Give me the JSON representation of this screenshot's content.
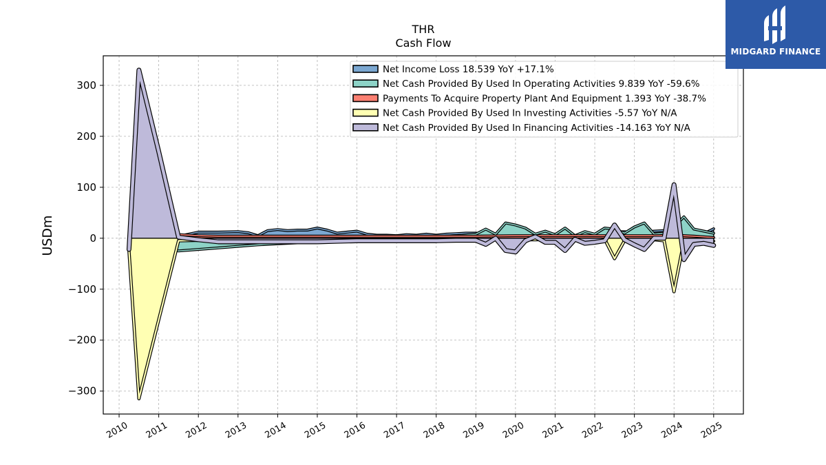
{
  "brand": {
    "name": "MIDGARD FINANCE",
    "color": "#2d5aa8"
  },
  "chart_data": {
    "type": "area",
    "title": "THR",
    "subtitle": "Cash Flow",
    "xlabel": "",
    "ylabel": "USDm",
    "xlim": [
      2009.6,
      2025.75
    ],
    "ylim": [
      -345,
      358
    ],
    "yticks": [
      -300,
      -200,
      -100,
      0,
      100,
      200,
      300
    ],
    "ytick_labels": [
      "−300",
      "−200",
      "−100",
      "0",
      "100",
      "200",
      "300"
    ],
    "xticks": [
      2010,
      2011,
      2012,
      2013,
      2014,
      2015,
      2016,
      2017,
      2018,
      2019,
      2020,
      2021,
      2022,
      2023,
      2024,
      2025
    ],
    "xtick_labels": [
      "2010",
      "2011",
      "2012",
      "2013",
      "2014",
      "2015",
      "2016",
      "2017",
      "2018",
      "2019",
      "2020",
      "2021",
      "2022",
      "2023",
      "2024",
      "2025"
    ],
    "grid": true,
    "legend_position": "top-right",
    "series": [
      {
        "name": "Net Income Loss",
        "legend_label": "Net Income Loss  18.539 YoY +17.1%",
        "color": "#7ba7d1",
        "line_width": 1.6,
        "x": [
          2010.25,
          2010.5,
          2011.0,
          2011.5,
          2011.75,
          2012.0,
          2012.5,
          2013.0,
          2013.25,
          2013.5,
          2013.75,
          2014.0,
          2014.25,
          2014.5,
          2014.75,
          2015.0,
          2015.25,
          2015.5,
          2015.75,
          2016.0,
          2016.25,
          2016.5,
          2016.75,
          2017.0,
          2017.25,
          2017.5,
          2017.75,
          2018.0,
          2018.25,
          2018.5,
          2018.75,
          2019.0,
          2019.25,
          2019.5,
          2019.75,
          2020.0,
          2020.25,
          2020.5,
          2020.75,
          2021.0,
          2021.25,
          2021.5,
          2021.75,
          2022.0,
          2022.25,
          2022.5,
          2022.75,
          2023.0,
          2023.25,
          2023.5,
          2023.75,
          2024.0,
          2024.25,
          2024.5,
          2024.75,
          2025.0
        ],
        "y": [
          -2,
          -2,
          1,
          4,
          8,
          12,
          12,
          13,
          11,
          5,
          15,
          17,
          15,
          16,
          16,
          20,
          16,
          10,
          12,
          14,
          8,
          6,
          6,
          5,
          7,
          6,
          8,
          6,
          8,
          9,
          10,
          10,
          8,
          6,
          7,
          7,
          6,
          6,
          8,
          8,
          6,
          4,
          8,
          7,
          10,
          12,
          13,
          10,
          12,
          14,
          15,
          18,
          12,
          10,
          9,
          18.5
        ]
      },
      {
        "name": "Net Cash Provided By Used In Operating Activities",
        "legend_label": "Net Cash Provided By Used In Operating Activities  9.839 YoY -59.6%",
        "color": "#8dd3c7",
        "line_width": 1.6,
        "x": [
          2010.25,
          2010.5,
          2011.0,
          2011.5,
          2012.0,
          2012.5,
          2013.0,
          2013.5,
          2014.0,
          2014.5,
          2015.0,
          2015.5,
          2016.0,
          2016.5,
          2017.0,
          2017.5,
          2018.0,
          2018.5,
          2019.0,
          2019.25,
          2019.5,
          2019.75,
          2020.0,
          2020.25,
          2020.5,
          2020.75,
          2021.0,
          2021.25,
          2021.5,
          2021.75,
          2022.0,
          2022.25,
          2022.5,
          2022.75,
          2023.0,
          2023.25,
          2023.5,
          2023.75,
          2024.0,
          2024.25,
          2024.5,
          2024.75,
          2025.0
        ],
        "y": [
          -5,
          -5,
          -15,
          -25,
          -22,
          -19,
          -16,
          -13,
          -11,
          -9,
          -7,
          -5,
          -3,
          -2,
          0,
          2,
          3,
          5,
          8,
          18,
          8,
          30,
          26,
          20,
          8,
          14,
          7,
          20,
          5,
          13,
          8,
          20,
          18,
          10,
          22,
          30,
          8,
          10,
          22,
          42,
          18,
          14,
          9.8
        ]
      },
      {
        "name": "Payments To Acquire Property Plant And Equipment",
        "legend_label": "Payments To Acquire Property Plant And Equipment  1.393 YoY -38.7%",
        "color": "#fb8072",
        "line_width": 1.6,
        "x": [
          2010.25,
          2010.5,
          2011.0,
          2011.5,
          2012.0,
          2012.5,
          2013.0,
          2014.0,
          2015.0,
          2016.0,
          2017.0,
          2018.0,
          2019.0,
          2020.0,
          2021.0,
          2022.0,
          2023.0,
          2023.5,
          2024.0,
          2024.5,
          2025.0
        ],
        "y": [
          6,
          6,
          5,
          7,
          5,
          4,
          4,
          4,
          4,
          4,
          4,
          4,
          4,
          5,
          5,
          5,
          5,
          5,
          6,
          4,
          1.4
        ]
      },
      {
        "name": "Net Cash Provided By Used In Investing Activities",
        "legend_label": "Net Cash Provided By Used In Investing Activities  -5.57 YoY N/A",
        "color": "#ffffb3",
        "line_width": 2.2,
        "x": [
          2010.25,
          2010.5,
          2011.0,
          2011.5,
          2012.0,
          2012.5,
          2013.0,
          2013.5,
          2014.0,
          2014.5,
          2015.0,
          2015.5,
          2016.0,
          2016.5,
          2017.0,
          2017.5,
          2018.0,
          2018.5,
          2019.0,
          2019.5,
          2020.0,
          2020.5,
          2021.0,
          2021.5,
          2022.0,
          2022.25,
          2022.5,
          2022.75,
          2023.0,
          2023.25,
          2023.5,
          2023.75,
          2024.0,
          2024.25,
          2024.5,
          2024.75,
          2025.0
        ],
        "y": [
          -25,
          -315,
          -160,
          -5,
          -4,
          -5,
          -4,
          -4,
          -4,
          -3,
          -3,
          -3,
          -2,
          -2,
          -2,
          -2,
          -2,
          -2,
          -2,
          -3,
          -3,
          -3,
          -2,
          -3,
          -3,
          -2,
          -40,
          -5,
          -5,
          -10,
          -3,
          -5,
          -105,
          -5,
          -3,
          -2,
          -5.6
        ]
      },
      {
        "name": "Net Cash Provided By Used In Financing Activities",
        "legend_label": "Net Cash Provided By Used In Financing Activities  -14.163 YoY N/A",
        "color": "#bebada",
        "line_width": 4.5,
        "x": [
          2010.25,
          2010.5,
          2011.0,
          2011.5,
          2012.0,
          2012.5,
          2013.0,
          2013.5,
          2014.0,
          2014.5,
          2015.0,
          2015.5,
          2016.0,
          2016.5,
          2017.0,
          2017.5,
          2018.0,
          2018.5,
          2019.0,
          2019.25,
          2019.5,
          2019.75,
          2020.0,
          2020.25,
          2020.5,
          2020.75,
          2021.0,
          2021.25,
          2021.5,
          2021.75,
          2022.0,
          2022.25,
          2022.5,
          2022.75,
          2023.0,
          2023.25,
          2023.5,
          2023.75,
          2024.0,
          2024.25,
          2024.5,
          2024.75,
          2025.0
        ],
        "y": [
          -22,
          330,
          170,
          2,
          -3,
          -7,
          -7,
          -7,
          -7,
          -7,
          -7,
          -6,
          -5,
          -5,
          -5,
          -5,
          -5,
          -4,
          -4,
          -12,
          0,
          -24,
          -27,
          -5,
          3,
          -8,
          -8,
          -24,
          -2,
          -10,
          -8,
          -5,
          26,
          -3,
          -13,
          -22,
          0,
          0,
          105,
          -42,
          -12,
          -10,
          -14.2
        ]
      }
    ]
  }
}
